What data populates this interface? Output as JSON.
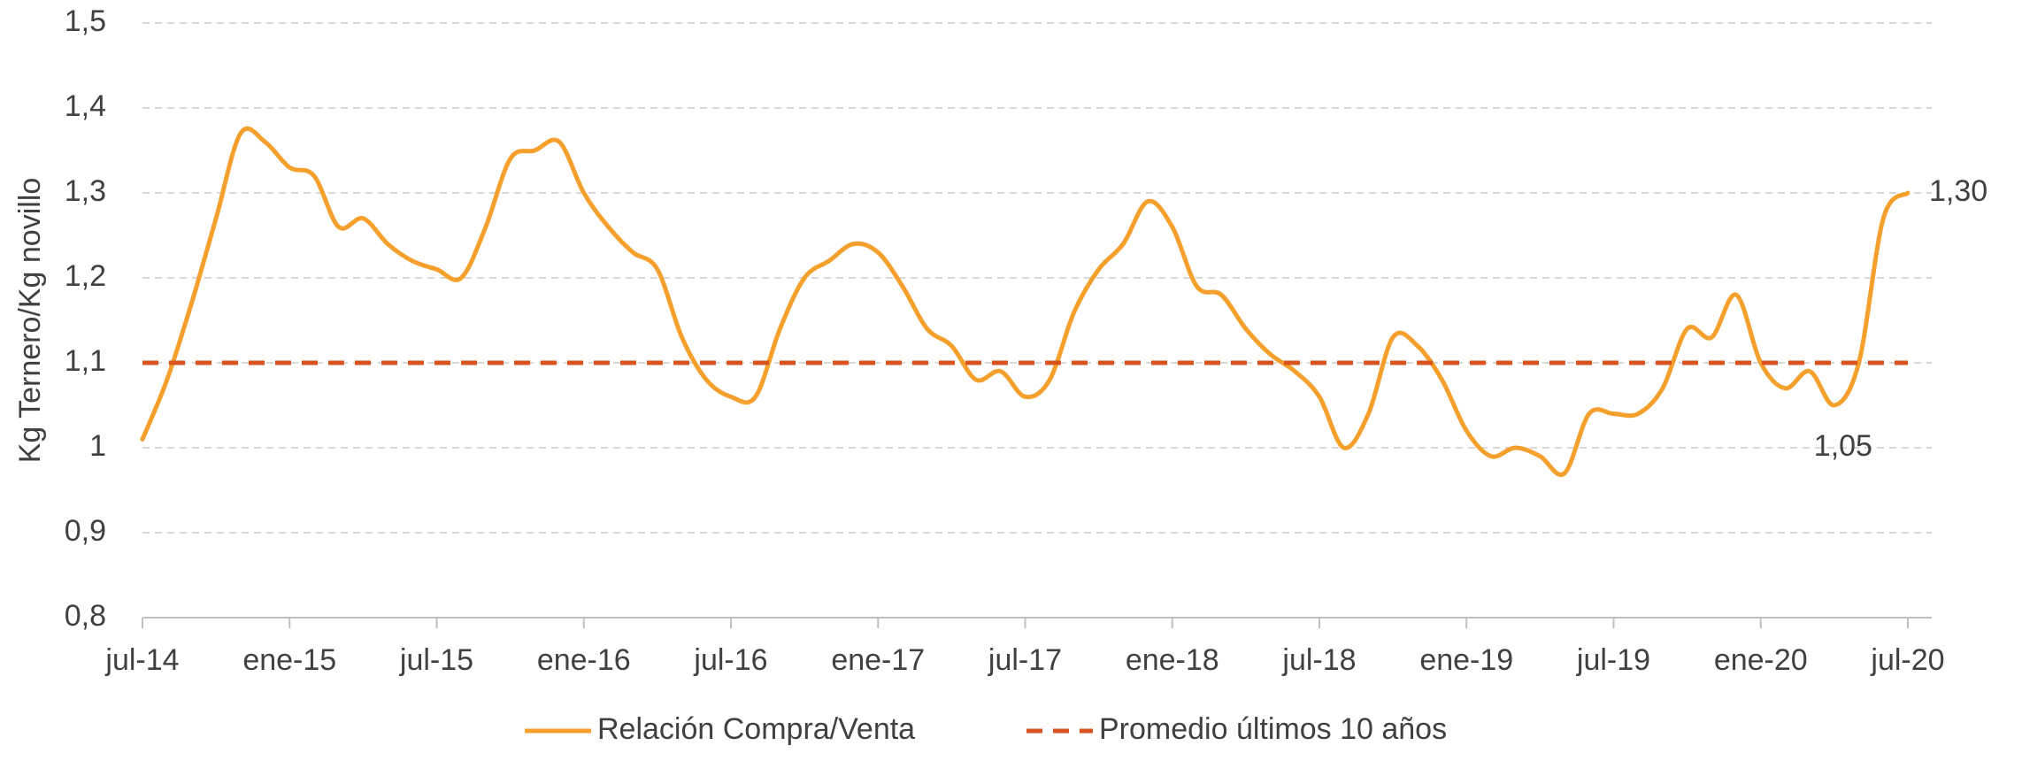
{
  "chart_data": {
    "type": "line",
    "y_label": "Kg Ternero/Kg novillo",
    "categories": [
      "jul-14",
      null,
      null,
      null,
      null,
      null,
      "ene-15",
      null,
      null,
      null,
      null,
      null,
      "jul-15",
      null,
      null,
      null,
      null,
      null,
      "ene-16",
      null,
      null,
      null,
      null,
      null,
      "jul-16",
      null,
      null,
      null,
      null,
      null,
      "ene-17",
      null,
      null,
      null,
      null,
      null,
      "jul-17",
      null,
      null,
      null,
      null,
      null,
      "ene-18",
      null,
      null,
      null,
      null,
      null,
      "jul-18",
      null,
      null,
      null,
      null,
      null,
      "ene-19",
      null,
      null,
      null,
      null,
      null,
      "jul-19",
      null,
      null,
      null,
      null,
      null,
      "ene-20",
      null,
      null,
      null,
      null,
      null,
      "jul-20"
    ],
    "series": [
      {
        "name": "Relación Compra/Venta",
        "color": "#f5a02c",
        "dash": false,
        "values": [
          1.01,
          1.08,
          1.17,
          1.27,
          1.37,
          1.36,
          1.33,
          1.32,
          1.26,
          1.27,
          1.24,
          1.22,
          1.21,
          1.2,
          1.26,
          1.34,
          1.35,
          1.36,
          1.3,
          1.26,
          1.23,
          1.21,
          1.13,
          1.08,
          1.06,
          1.06,
          1.14,
          1.2,
          1.22,
          1.24,
          1.23,
          1.19,
          1.14,
          1.12,
          1.08,
          1.09,
          1.06,
          1.08,
          1.16,
          1.21,
          1.24,
          1.29,
          1.26,
          1.19,
          1.18,
          1.14,
          1.11,
          1.09,
          1.06,
          1.0,
          1.04,
          1.13,
          1.12,
          1.08,
          1.02,
          0.99,
          1.0,
          0.99,
          0.97,
          1.04,
          1.04,
          1.04,
          1.07,
          1.14,
          1.13,
          1.18,
          1.1,
          1.07,
          1.09,
          1.05,
          1.1,
          1.27,
          1.3
        ],
        "value_labels": [
          null,
          null,
          null,
          null,
          null,
          null,
          null,
          null,
          null,
          null,
          null,
          null,
          null,
          null,
          null,
          null,
          null,
          null,
          null,
          null,
          null,
          null,
          null,
          null,
          null,
          null,
          null,
          null,
          null,
          null,
          null,
          null,
          null,
          null,
          null,
          null,
          null,
          null,
          null,
          null,
          null,
          null,
          null,
          null,
          null,
          null,
          null,
          null,
          null,
          null,
          null,
          null,
          null,
          null,
          null,
          null,
          null,
          null,
          null,
          null,
          null,
          null,
          null,
          null,
          null,
          null,
          null,
          null,
          null,
          "1,05",
          null,
          null,
          "1,30"
        ]
      },
      {
        "name": "Promedio últimos 10 años",
        "color": "#d9531e",
        "dash": true,
        "values": [
          1.1,
          1.1,
          1.1,
          1.1,
          1.1,
          1.1,
          1.1,
          1.1,
          1.1,
          1.1,
          1.1,
          1.1,
          1.1,
          1.1,
          1.1,
          1.1,
          1.1,
          1.1,
          1.1,
          1.1,
          1.1,
          1.1,
          1.1,
          1.1,
          1.1,
          1.1,
          1.1,
          1.1,
          1.1,
          1.1,
          1.1,
          1.1,
          1.1,
          1.1,
          1.1,
          1.1,
          1.1,
          1.1,
          1.1,
          1.1,
          1.1,
          1.1,
          1.1,
          1.1,
          1.1,
          1.1,
          1.1,
          1.1,
          1.1,
          1.1,
          1.1,
          1.1,
          1.1,
          1.1,
          1.1,
          1.1,
          1.1,
          1.1,
          1.1,
          1.1,
          1.1,
          1.1,
          1.1,
          1.1,
          1.1,
          1.1,
          1.1,
          1.1,
          1.1,
          1.1,
          1.1,
          1.1,
          1.1
        ]
      }
    ],
    "ylim": [
      0.8,
      1.5
    ],
    "yticks": [
      {
        "value": 0.8,
        "label": "0,8"
      },
      {
        "value": 0.9,
        "label": "0,9"
      },
      1,
      {
        "value": 1.1,
        "label": "1,1"
      },
      {
        "value": 1.2,
        "label": "1,2"
      },
      {
        "value": 1.3,
        "label": "1,3"
      },
      {
        "value": 1.4,
        "label": "1,4"
      },
      {
        "value": 1.5,
        "label": "1,5"
      }
    ],
    "grid": true,
    "legend": "bottom"
  }
}
